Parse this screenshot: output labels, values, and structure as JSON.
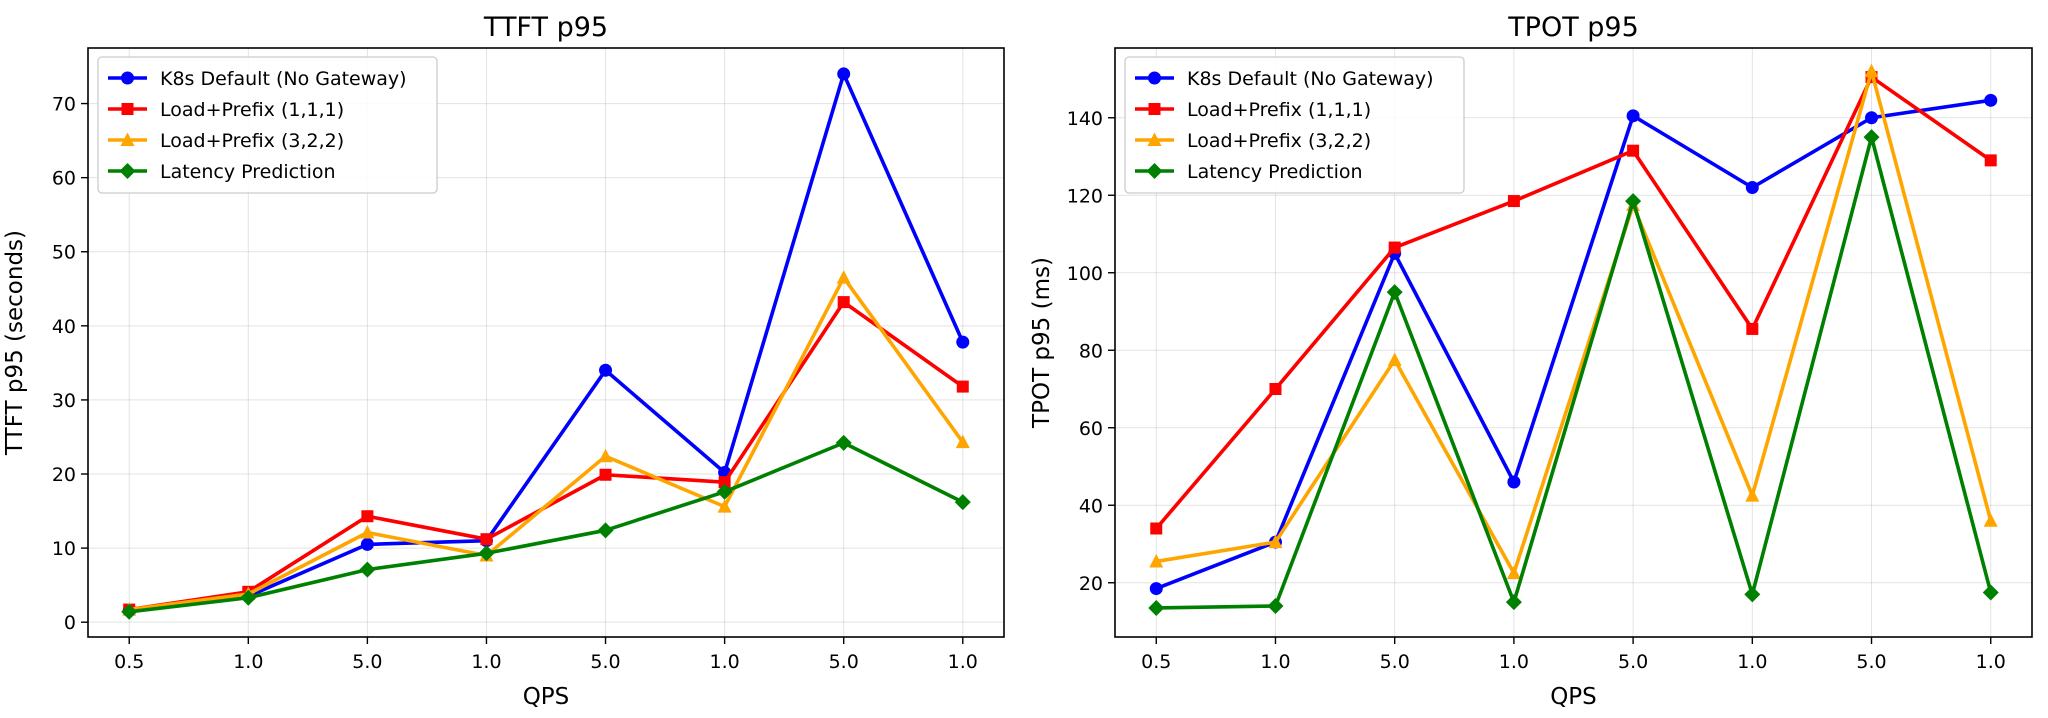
{
  "chart_data": [
    {
      "type": "line",
      "title": "TTFT p95",
      "xlabel": "QPS",
      "ylabel": "TTFT p95 (seconds)",
      "categories": [
        "0.5",
        "1.0",
        "5.0",
        "1.0",
        "5.0",
        "1.0",
        "5.0",
        "1.0"
      ],
      "ylim": [
        -2,
        77.5
      ],
      "yticks": [
        0,
        10,
        20,
        30,
        40,
        50,
        60,
        70
      ],
      "grid": true,
      "legend": "top-left",
      "series": [
        {
          "name": "K8s Default (No Gateway)",
          "color": "#0000ff",
          "marker": "circle",
          "values": [
            1.6,
            3.5,
            10.5,
            11.0,
            34.0,
            20.2,
            74.0,
            37.8
          ]
        },
        {
          "name": "Load+Prefix (1,1,1)",
          "color": "#ff0000",
          "marker": "square",
          "values": [
            1.7,
            4.1,
            14.3,
            11.2,
            19.9,
            18.9,
            43.2,
            31.8
          ]
        },
        {
          "name": "Load+Prefix (3,2,2)",
          "color": "#ffa500",
          "marker": "triangle",
          "values": [
            1.7,
            3.8,
            12.1,
            9.0,
            22.4,
            15.6,
            46.5,
            24.3
          ]
        },
        {
          "name": "Latency Prediction",
          "color": "#008000",
          "marker": "diamond",
          "values": [
            1.4,
            3.3,
            7.1,
            9.3,
            12.4,
            17.6,
            24.2,
            16.2
          ]
        }
      ]
    },
    {
      "type": "line",
      "title": "TPOT p95",
      "xlabel": "QPS",
      "ylabel": "TPOT p95 (ms)",
      "categories": [
        "0.5",
        "1.0",
        "5.0",
        "1.0",
        "5.0",
        "1.0",
        "5.0",
        "1.0"
      ],
      "ylim": [
        6,
        158
      ],
      "yticks": [
        20,
        40,
        60,
        80,
        100,
        120,
        140
      ],
      "grid": true,
      "legend": "top-left",
      "series": [
        {
          "name": "K8s Default (No Gateway)",
          "color": "#0000ff",
          "marker": "circle",
          "values": [
            18.5,
            30.5,
            105.0,
            46.0,
            140.5,
            122.0,
            140.0,
            144.5
          ]
        },
        {
          "name": "Load+Prefix (1,1,1)",
          "color": "#ff0000",
          "marker": "square",
          "values": [
            34.0,
            70.0,
            106.5,
            118.5,
            131.5,
            85.5,
            150.5,
            129.0
          ]
        },
        {
          "name": "Load+Prefix (3,2,2)",
          "color": "#ffa500",
          "marker": "triangle",
          "values": [
            25.5,
            30.5,
            77.5,
            22.5,
            117.5,
            42.5,
            152.0,
            36.0
          ]
        },
        {
          "name": "Latency Prediction",
          "color": "#008000",
          "marker": "diamond",
          "values": [
            13.5,
            14.0,
            95.0,
            15.0,
            118.5,
            17.0,
            135.0,
            17.5
          ]
        }
      ]
    }
  ]
}
